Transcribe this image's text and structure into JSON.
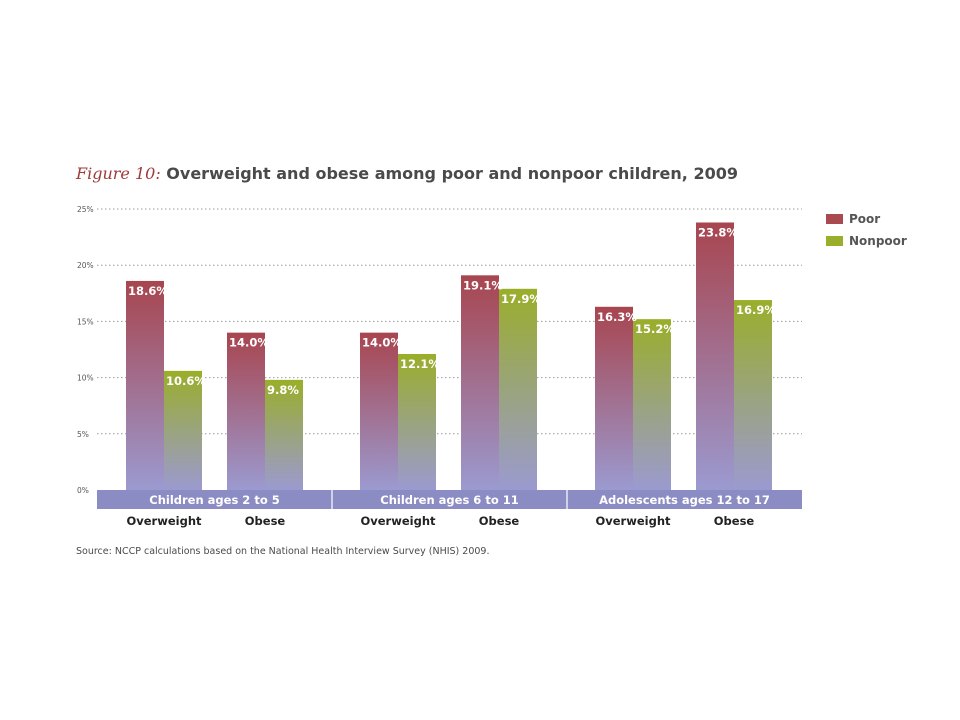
{
  "title": {
    "prefix": "Figure 10:",
    "main": "Overweight and obese among poor and nonpoor children, 2009"
  },
  "source": "Source: NCCP calculations based on the National Health Interview Survey (NHIS) 2009.",
  "colors": {
    "poor_top": "#a8454f",
    "nonpoor_top": "#9aae2a",
    "bottom": "#9b9ad0",
    "group_band": "#8c8cc4",
    "legend_poor": "#a84a50",
    "legend_nonpoor": "#9aae2a"
  },
  "chart_data": {
    "type": "bar",
    "ylim": [
      0,
      25
    ],
    "y_ticks": [
      "0%",
      "5%",
      "10%",
      "15%",
      "20%",
      "25%"
    ],
    "grid": true,
    "legend_position": "top-right",
    "groups": [
      "Children ages 2 to 5",
      "Children ages 6 to 11",
      "Adolescents ages 12 to 17"
    ],
    "categories": [
      "Overweight",
      "Obese"
    ],
    "series": [
      {
        "name": "Poor",
        "values": [
          [
            18.6,
            14.0
          ],
          [
            14.0,
            19.1
          ],
          [
            16.3,
            23.8
          ]
        ],
        "labels": [
          [
            "18.6%",
            "14.0%"
          ],
          [
            "14.0%",
            "19.1%"
          ],
          [
            "16.3%",
            "23.8%"
          ]
        ]
      },
      {
        "name": "Nonpoor",
        "values": [
          [
            10.6,
            9.8
          ],
          [
            12.1,
            17.9
          ],
          [
            15.2,
            16.9
          ]
        ],
        "labels": [
          [
            "10.6%",
            "9.8%"
          ],
          [
            "12.1%",
            "17.9%"
          ],
          [
            "15.2%",
            "16.9%"
          ]
        ]
      }
    ]
  }
}
